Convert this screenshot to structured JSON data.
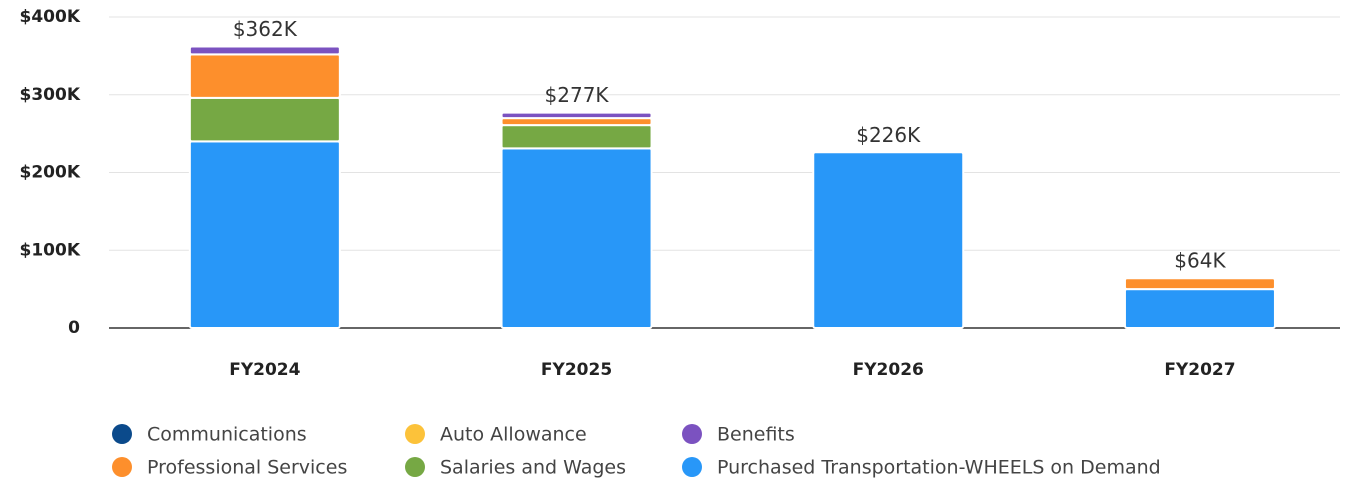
{
  "chart_data": {
    "type": "stacked_bar",
    "categories": [
      "FY2024",
      "FY2025",
      "FY2026",
      "FY2027"
    ],
    "series": [
      {
        "name": "Communications",
        "color": "#0b4a8b",
        "values": [
          0,
          0,
          0,
          0
        ]
      },
      {
        "name": "Auto Allowance",
        "color": "#fcc23a",
        "values": [
          0,
          0,
          0,
          0
        ]
      },
      {
        "name": "Benefits",
        "color": "#7b52c0",
        "values": [
          10000,
          7000,
          0,
          0
        ]
      },
      {
        "name": "Professional Services",
        "color": "#fd8f2c",
        "values": [
          56000,
          9000,
          0,
          14000
        ]
      },
      {
        "name": "Salaries and Wages",
        "color": "#76a844",
        "values": [
          56000,
          30000,
          0,
          0
        ]
      },
      {
        "name": "Purchased Transportation-WHEELS on Demand",
        "color": "#2897f8",
        "values": [
          240000,
          231000,
          226000,
          50000
        ]
      }
    ],
    "totals": [
      362000,
      277000,
      226000,
      64000
    ],
    "total_labels": [
      "$362K",
      "$277K",
      "$226K",
      "$64K"
    ],
    "ylim": [
      0,
      400000
    ],
    "yticks": [
      0,
      {
        "value": 100000,
        "label": "$100K"
      },
      {
        "value": 200000,
        "label": "$200K"
      },
      {
        "value": 300000,
        "label": "$300K"
      },
      {
        "value": 400000,
        "label": "$400K"
      }
    ],
    "grid": true
  }
}
